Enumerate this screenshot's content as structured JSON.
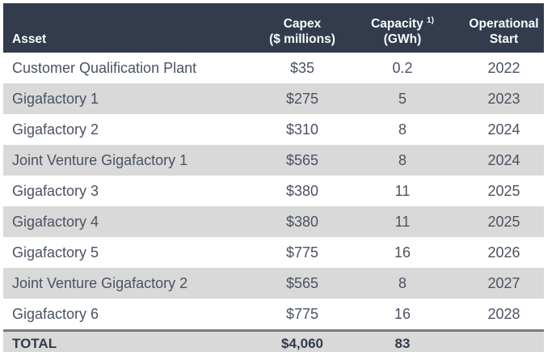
{
  "table": {
    "columns": {
      "asset": {
        "label": "Asset"
      },
      "capex": {
        "line1": "Capex",
        "line2": "($ millions)"
      },
      "capacity": {
        "line1": "Capacity",
        "sup": "1)",
        "line2": "(GWh)"
      },
      "start": {
        "line1": "Operational",
        "line2": "Start"
      }
    },
    "rows": [
      {
        "asset": "Customer Qualification Plant",
        "capex": "$35",
        "capacity": "0.2",
        "start": "2022"
      },
      {
        "asset": "Gigafactory 1",
        "capex": "$275",
        "capacity": "5",
        "start": "2023"
      },
      {
        "asset": "Gigafactory 2",
        "capex": "$310",
        "capacity": "8",
        "start": "2024"
      },
      {
        "asset": "Joint Venture Gigafactory 1",
        "capex": "$565",
        "capacity": "8",
        "start": "2024"
      },
      {
        "asset": "Gigafactory 3",
        "capex": "$380",
        "capacity": "11",
        "start": "2025"
      },
      {
        "asset": "Gigafactory 4",
        "capex": "$380",
        "capacity": "11",
        "start": "2025"
      },
      {
        "asset": "Gigafactory 5",
        "capex": "$775",
        "capacity": "16",
        "start": "2026"
      },
      {
        "asset": "Joint Venture Gigafactory 2",
        "capex": "$565",
        "capacity": "8",
        "start": "2027"
      },
      {
        "asset": "Gigafactory 6",
        "capex": "$775",
        "capacity": "16",
        "start": "2028"
      }
    ],
    "total": {
      "label": "TOTAL",
      "capex": "$4,060",
      "capacity": "83",
      "start": ""
    }
  },
  "colors": {
    "header_bg": "#323c4d",
    "header_text": "#fbfcfd",
    "row_alt_bg": "#d9d9d9",
    "body_text": "#4a5362",
    "total_text": "#323c4d",
    "total_rule": "#727c87"
  }
}
